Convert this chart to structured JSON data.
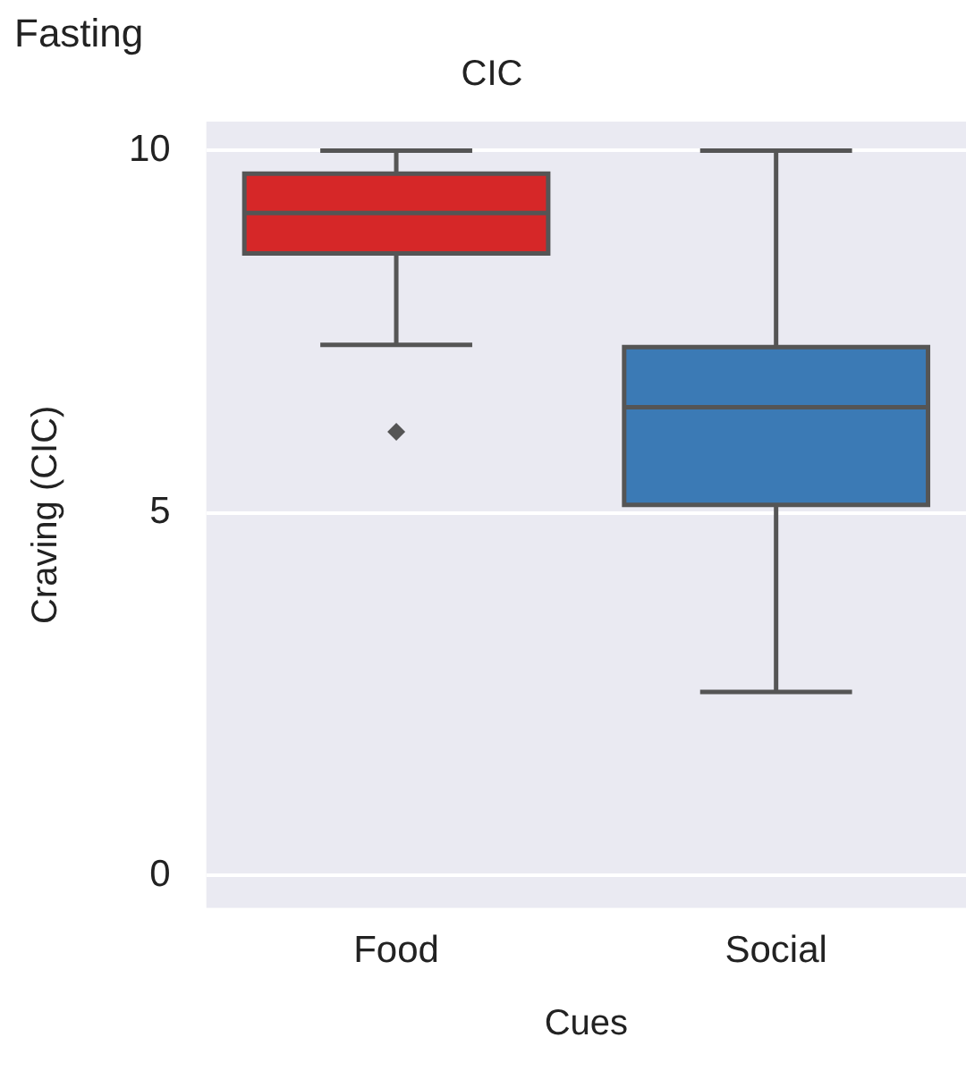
{
  "chart_data": {
    "type": "box",
    "subtitle": "Fasting",
    "title": "CIC",
    "xlabel": "Cues",
    "ylabel": "Craving (CIC)",
    "categories": [
      "Food",
      "Social"
    ],
    "colors": [
      "#d62728",
      "#3b7ab5"
    ],
    "boxes": [
      {
        "low": 7.32,
        "q1": 8.58,
        "median": 9.14,
        "q3": 9.68,
        "high": 10,
        "outliers": [
          6.12
        ]
      },
      {
        "low": 2.53,
        "q1": 5.11,
        "median": 6.46,
        "q3": 7.29,
        "high": 10
      }
    ],
    "ylim": [
      -0.45,
      10.4
    ],
    "yticks": [
      0,
      5,
      10
    ],
    "grid": "y"
  }
}
